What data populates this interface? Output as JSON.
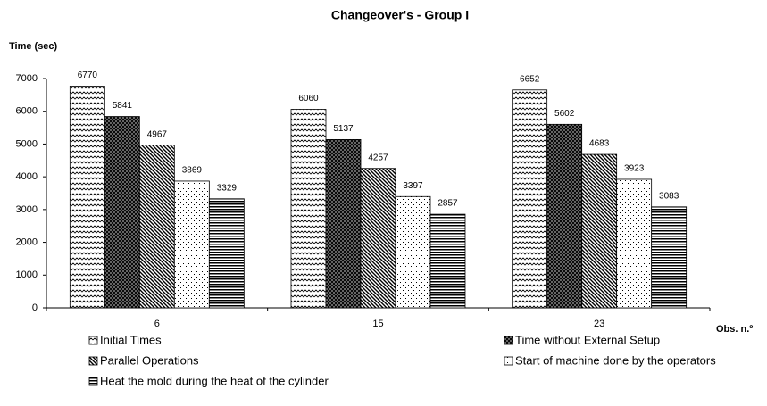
{
  "chart_data": {
    "type": "bar",
    "title": "Changeover's - Group I",
    "y_label": "Time (sec)",
    "x_label": "Obs. n.º",
    "categories": [
      "6",
      "15",
      "23"
    ],
    "series": [
      {
        "name": "Initial Times",
        "values": [
          6770,
          6060,
          6652
        ]
      },
      {
        "name": "Time without External Setup",
        "values": [
          5841,
          5137,
          5602
        ]
      },
      {
        "name": "Parallel Operations",
        "values": [
          4967,
          4257,
          4683
        ]
      },
      {
        "name": "Start of machine done by the operators",
        "values": [
          3869,
          3397,
          3923
        ]
      },
      {
        "name": "Heat the mold during the heat of the cylinder",
        "values": [
          3329,
          2857,
          3083
        ]
      }
    ],
    "ylim": [
      0,
      7000
    ],
    "yticks": [
      0,
      1000,
      2000,
      3000,
      4000,
      5000,
      6000,
      7000
    ],
    "grid": false
  }
}
